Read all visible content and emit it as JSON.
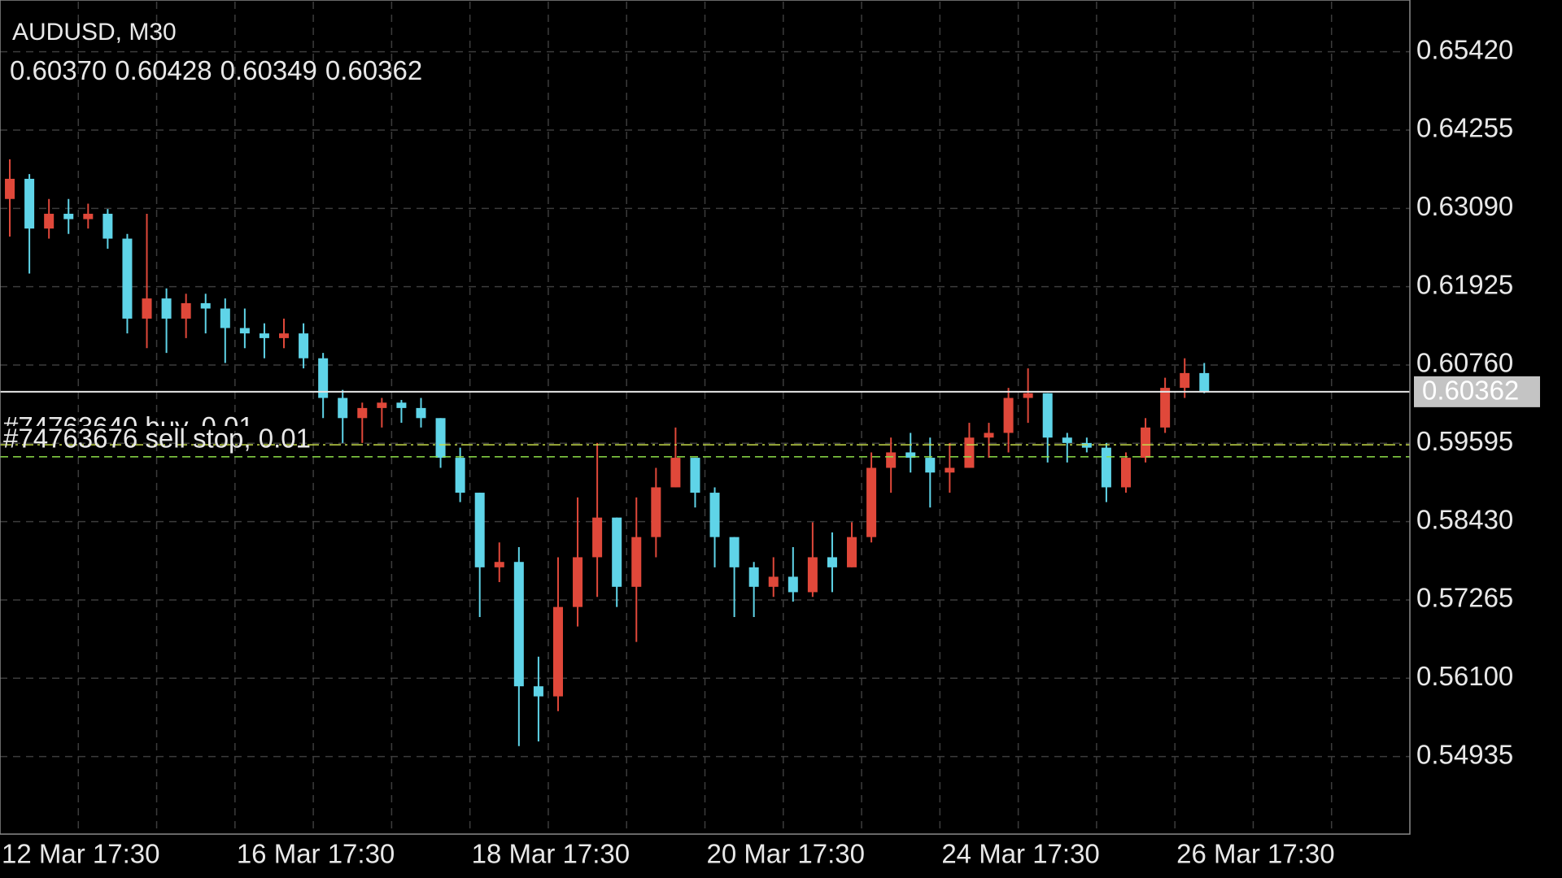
{
  "chart_data": {
    "type": "candlestick",
    "title": "AUDUSD, M30",
    "ohlc_header": [
      {
        "value": 0.6037,
        "label": "0.60370"
      },
      0.60428,
      0.60349,
      0.60362
    ],
    "categories": [
      "12 Mar 17:30",
      null,
      null,
      null,
      null,
      null,
      null,
      null,
      null,
      null,
      null,
      null,
      "16 Mar 17:30",
      null,
      null,
      null,
      null,
      null,
      null,
      null,
      null,
      null,
      null,
      null,
      "18 Mar 17:30",
      null,
      null,
      null,
      null,
      null,
      null,
      null,
      null,
      null,
      null,
      null,
      "20 Mar 17:30",
      null,
      null,
      null,
      null,
      null,
      null,
      null,
      null,
      null,
      null,
      null,
      "24 Mar 17:30",
      null,
      null,
      null,
      null,
      null,
      null,
      null,
      null,
      null,
      null,
      null,
      "26 Mar 17:30",
      null,
      null,
      null,
      null,
      null,
      null,
      null,
      null,
      null,
      null,
      null
    ],
    "open": [
      0.6323,
      0.6353,
      0.6279,
      0.6301,
      0.6293,
      0.6301,
      0.6264,
      0.6145,
      0.6175,
      0.6145,
      0.6168,
      0.616,
      0.6131,
      0.6123,
      0.6116,
      0.6123,
      0.6086,
      0.6027,
      0.5997,
      0.6012,
      0.602,
      0.6012,
      0.5997,
      0.5938,
      0.5886,
      0.5775,
      0.5783,
      0.5598,
      0.5583,
      0.5716,
      0.579,
      0.5849,
      0.5746,
      0.582,
      0.5894,
      0.5938,
      0.5886,
      0.582,
      0.5775,
      0.5746,
      0.5761,
      0.5738,
      0.579,
      0.5775,
      0.582,
      0.5923,
      0.5946,
      0.5938,
      0.5916,
      0.5923,
      0.5968,
      0.5975,
      0.6027,
      0.6034,
      0.5968,
      0.596,
      0.5953,
      0.5894,
      0.5938,
      0.5983,
      0.6042,
      0.6064,
      null,
      null,
      null,
      null,
      null,
      null,
      null,
      null,
      null,
      null
    ],
    "high": [
      0.6382,
      0.636,
      0.6323,
      0.6323,
      0.6316,
      0.6308,
      0.6271,
      0.6301,
      0.619,
      0.6182,
      0.6182,
      0.6175,
      0.616,
      0.6138,
      0.6145,
      0.6138,
      0.6094,
      0.6039,
      0.602,
      0.6027,
      0.6024,
      0.6027,
      0.5997,
      0.5953,
      0.5886,
      0.5812,
      0.5805,
      0.5642,
      0.579,
      0.5879,
      0.596,
      0.5849,
      0.5879,
      0.5923,
      0.5983,
      0.5938,
      0.5894,
      0.582,
      0.5783,
      0.579,
      0.5805,
      0.5842,
      0.5827,
      0.5842,
      0.5946,
      0.5968,
      0.5975,
      0.5968,
      0.596,
      0.599,
      0.599,
      0.6042,
      0.6071,
      0.6034,
      0.5975,
      0.5968,
      0.596,
      0.5946,
      0.5997,
      0.6057,
      0.6086,
      0.6079,
      null,
      null,
      null,
      null,
      null,
      null,
      null,
      null,
      null,
      null
    ],
    "low": [
      0.6267,
      0.6212,
      0.6264,
      0.6271,
      0.6279,
      0.6249,
      0.6123,
      0.6101,
      0.6094,
      0.6116,
      0.6123,
      0.6079,
      0.6101,
      0.6086,
      0.6101,
      0.6071,
      0.5997,
      0.596,
      0.596,
      0.5983,
      0.599,
      0.5983,
      0.5923,
      0.5872,
      0.5701,
      0.5753,
      0.5509,
      0.5516,
      0.5561,
      0.5687,
      0.5731,
      0.5716,
      0.5664,
      0.579,
      0.5894,
      0.5864,
      0.5775,
      0.5701,
      0.5701,
      0.5731,
      0.5724,
      0.5731,
      0.5738,
      0.5775,
      0.5812,
      0.5886,
      0.5916,
      0.5864,
      0.5886,
      0.5923,
      0.5938,
      0.5946,
      0.599,
      0.5931,
      0.5931,
      0.5946,
      0.5872,
      0.5886,
      0.5931,
      0.5975,
      0.6027,
      0.6034,
      null,
      null,
      null,
      null,
      null,
      null,
      null,
      null,
      null,
      null
    ],
    "close": [
      0.6353,
      0.6279,
      0.6301,
      0.6293,
      0.6301,
      0.6264,
      0.6145,
      0.6175,
      0.6145,
      0.6168,
      0.616,
      0.6131,
      0.6123,
      0.6116,
      0.6123,
      0.6086,
      0.6027,
      0.5997,
      0.6012,
      0.602,
      0.6012,
      0.5997,
      0.5938,
      0.5886,
      0.5775,
      0.5783,
      0.5598,
      0.5583,
      0.5716,
      0.579,
      0.5849,
      0.5746,
      0.582,
      0.5894,
      0.5938,
      0.5886,
      0.582,
      0.5775,
      0.5746,
      0.5761,
      0.5738,
      0.579,
      0.5775,
      0.582,
      0.5923,
      0.5946,
      0.5938,
      0.5916,
      0.5923,
      0.5968,
      0.5975,
      0.6027,
      0.6034,
      0.5968,
      0.596,
      0.5953,
      0.5894,
      0.5938,
      0.5983,
      0.6042,
      0.6064,
      0.6036,
      null,
      null,
      null,
      null,
      null,
      null,
      null,
      null,
      null,
      null
    ],
    "up_color": "#e0483a",
    "down_color": "#5fd4e8",
    "ylim": [
      0.53781,
      0.66166
    ],
    "yticks": [
      {
        "value": 0.6542,
        "label": "0.65420"
      },
      0.64255,
      {
        "value": 0.6309,
        "label": "0.63090"
      },
      0.61925,
      {
        "value": 0.6076,
        "label": "0.60760"
      },
      0.59595,
      {
        "value": 0.5843,
        "label": "0.58430"
      },
      0.57265,
      {
        "value": 0.561,
        "label": "0.56100"
      },
      0.54935
    ],
    "grid": true,
    "current_price": 0.60362,
    "orders": [
      {
        "label": "#74763640 buy, 0.01",
        "price": 0.59573,
        "color": "#c6dc4a"
      },
      {
        "label": "#74763676 sell stop, 0.01",
        "price": 0.59395,
        "color": "#8fe04a"
      }
    ]
  }
}
